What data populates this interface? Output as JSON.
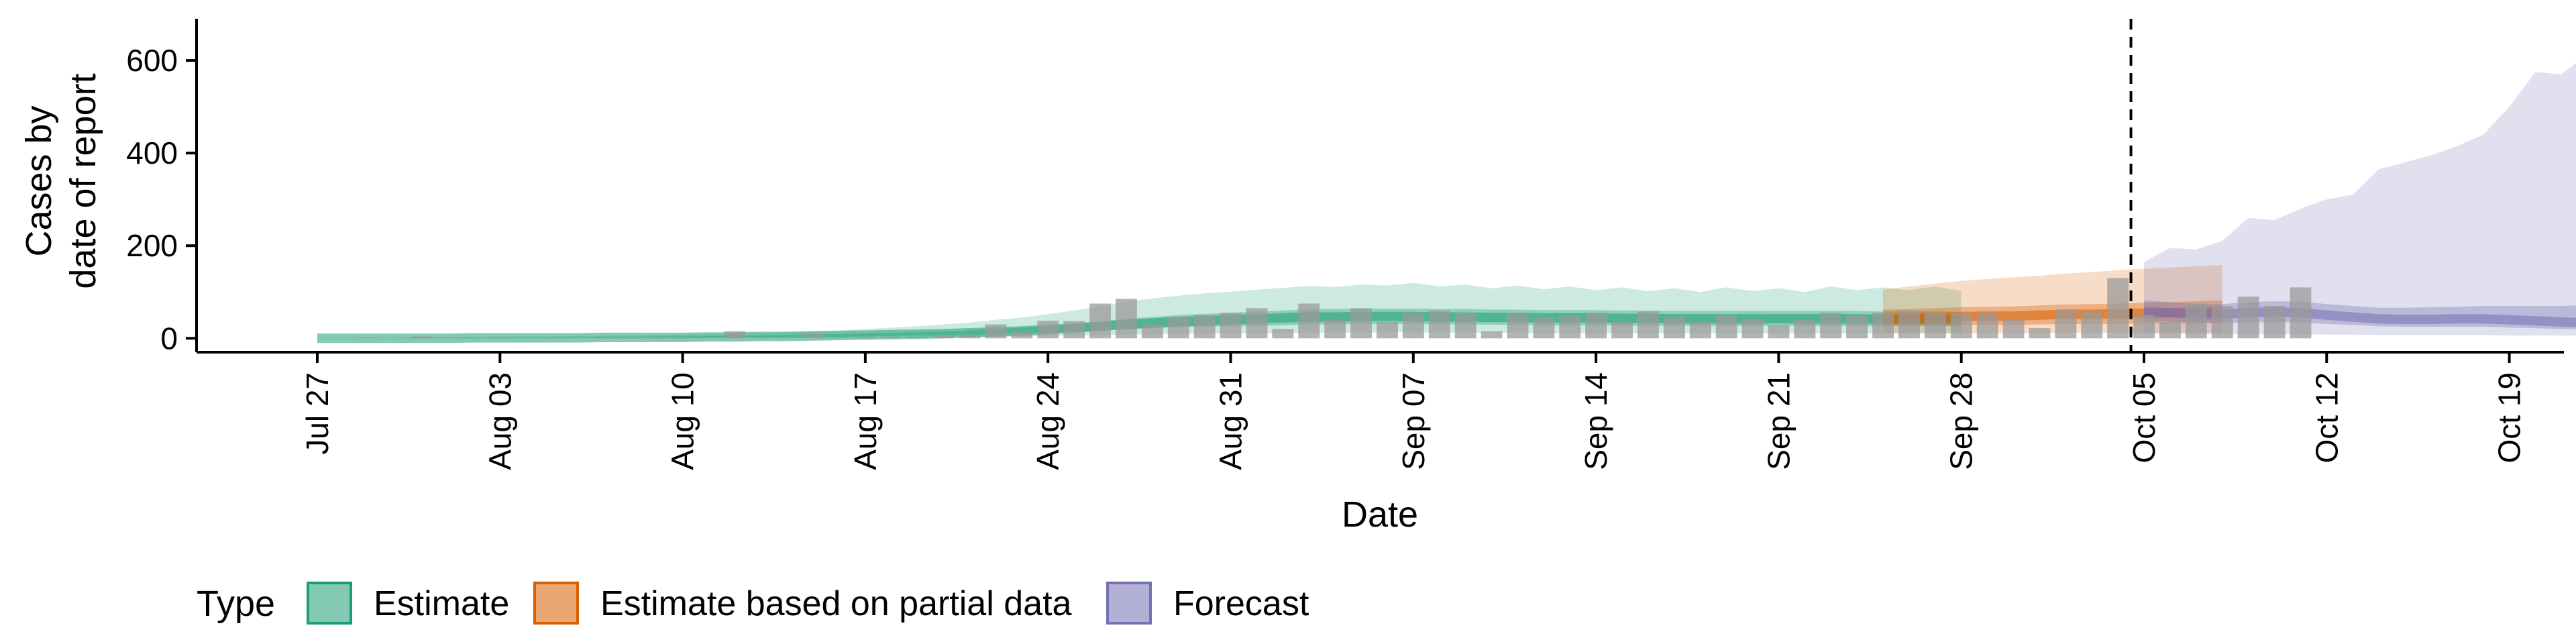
{
  "chart_data": {
    "type": "area",
    "title": "",
    "xlabel": "Date",
    "ylabel_lines": [
      "Cases by",
      "date of report"
    ],
    "x_start_date": "Jul 27",
    "x_end_date": "Oct 18",
    "xlim": [
      "Jul 22",
      "Oct 21"
    ],
    "ylim": [
      -30,
      690
    ],
    "grid": false,
    "legend_position": "bottom-left",
    "x_ticks": [
      "Jul 27",
      "Aug 03",
      "Aug 10",
      "Aug 17",
      "Aug 24",
      "Aug 31",
      "Sep 07",
      "Sep 14",
      "Sep 21",
      "Sep 28",
      "Oct 05",
      "Oct 12",
      "Oct 19"
    ],
    "y_ticks": [
      0,
      200,
      400,
      600
    ],
    "forecast_marker_date": "Oct 04",
    "legend": {
      "title": "Type",
      "items": [
        {
          "label": "Estimate",
          "color": "#1b9e77"
        },
        {
          "label": "Estimate based on partial data",
          "color": "#d95f02"
        },
        {
          "label": "Forecast",
          "color": "#7570b3"
        }
      ]
    },
    "colors": {
      "bar": "#9a9a9a",
      "marker_line": "#000000"
    },
    "reported_cases": [
      0,
      0,
      1,
      0,
      4,
      1,
      0,
      1,
      0,
      2,
      0,
      1,
      1,
      3,
      1,
      1,
      15,
      2,
      1,
      10,
      1,
      2,
      4,
      3,
      6,
      8,
      30,
      15,
      38,
      37,
      75,
      85,
      30,
      45,
      50,
      55,
      65,
      20,
      75,
      40,
      65,
      35,
      55,
      60,
      55,
      15,
      55,
      45,
      50,
      55,
      35,
      58,
      45,
      35,
      50,
      42,
      28,
      40,
      55,
      50,
      55,
      60,
      55,
      55,
      55,
      42,
      22,
      62,
      58,
      130,
      50,
      35,
      75,
      70,
      90,
      70,
      110,
      0,
      0,
      0,
      0,
      0,
      0,
      0,
      0,
      0,
      0,
      0,
      0,
      0,
      0
    ],
    "series": [
      {
        "name": "Estimate",
        "start": "Jul 27",
        "median": [
          0,
          0,
          0,
          0,
          0,
          0,
          1,
          1,
          1,
          1,
          1,
          2,
          2,
          2,
          2,
          3,
          3,
          4,
          4,
          5,
          6,
          7,
          8,
          9,
          10,
          12,
          14,
          16,
          19,
          22,
          26,
          30,
          33,
          36,
          38,
          40,
          42,
          44,
          46,
          46,
          47,
          47,
          47,
          46,
          46,
          45,
          45,
          44,
          44,
          44,
          43,
          43,
          42,
          42,
          42,
          42,
          42,
          42,
          42,
          42,
          41,
          41,
          41,
          40
        ],
        "q25_75": [
          [
            0,
            0
          ],
          [
            0,
            0
          ],
          [
            0,
            0
          ],
          [
            0,
            0
          ],
          [
            0,
            1
          ],
          [
            0,
            1
          ],
          [
            0,
            1
          ],
          [
            1,
            2
          ],
          [
            1,
            2
          ],
          [
            1,
            2
          ],
          [
            1,
            2
          ],
          [
            1,
            3
          ],
          [
            1,
            3
          ],
          [
            1,
            4
          ],
          [
            1,
            4
          ],
          [
            2,
            5
          ],
          [
            2,
            5
          ],
          [
            2,
            6
          ],
          [
            2,
            7
          ],
          [
            3,
            8
          ],
          [
            3,
            9
          ],
          [
            4,
            10
          ],
          [
            5,
            12
          ],
          [
            6,
            13
          ],
          [
            6,
            15
          ],
          [
            7,
            17
          ],
          [
            9,
            20
          ],
          [
            10,
            23
          ],
          [
            12,
            27
          ],
          [
            14,
            31
          ],
          [
            17,
            36
          ],
          [
            20,
            42
          ],
          [
            22,
            46
          ],
          [
            24,
            50
          ],
          [
            25,
            53
          ],
          [
            26,
            55
          ],
          [
            27,
            58
          ],
          [
            28,
            60
          ],
          [
            30,
            63
          ],
          [
            30,
            63
          ],
          [
            31,
            64
          ],
          [
            31,
            64
          ],
          [
            31,
            64
          ],
          [
            30,
            63
          ],
          [
            30,
            63
          ],
          [
            29,
            62
          ],
          [
            29,
            62
          ],
          [
            28,
            61
          ],
          [
            28,
            61
          ],
          [
            28,
            61
          ],
          [
            27,
            60
          ],
          [
            27,
            60
          ],
          [
            27,
            59
          ],
          [
            27,
            59
          ],
          [
            27,
            59
          ],
          [
            27,
            59
          ],
          [
            27,
            59
          ],
          [
            27,
            59
          ],
          [
            27,
            59
          ],
          [
            27,
            59
          ],
          [
            26,
            58
          ],
          [
            26,
            58
          ],
          [
            26,
            58
          ],
          [
            25,
            57
          ]
        ],
        "q5_95": [
          [
            0,
            0
          ],
          [
            0,
            1
          ],
          [
            0,
            1
          ],
          [
            0,
            1
          ],
          [
            0,
            2
          ],
          [
            0,
            2
          ],
          [
            0,
            3
          ],
          [
            0,
            3
          ],
          [
            0,
            4
          ],
          [
            0,
            4
          ],
          [
            0,
            5
          ],
          [
            0,
            5
          ],
          [
            0,
            6
          ],
          [
            0,
            7
          ],
          [
            0,
            8
          ],
          [
            0,
            9
          ],
          [
            0,
            10
          ],
          [
            1,
            12
          ],
          [
            1,
            13
          ],
          [
            1,
            15
          ],
          [
            1,
            17
          ],
          [
            1,
            20
          ],
          [
            2,
            23
          ],
          [
            2,
            26
          ],
          [
            2,
            30
          ],
          [
            3,
            34
          ],
          [
            3,
            40
          ],
          [
            4,
            45
          ],
          [
            5,
            52
          ],
          [
            6,
            60
          ],
          [
            7,
            69
          ],
          [
            8,
            79
          ],
          [
            9,
            86
          ],
          [
            10,
            92
          ],
          [
            10,
            97
          ],
          [
            11,
            101
          ],
          [
            11,
            105
          ],
          [
            12,
            109
          ],
          [
            12,
            113
          ],
          [
            12,
            111
          ],
          [
            12,
            116
          ],
          [
            13,
            114
          ],
          [
            13,
            120
          ],
          [
            12,
            112
          ],
          [
            12,
            116
          ],
          [
            12,
            108
          ],
          [
            12,
            114
          ],
          [
            11,
            106
          ],
          [
            11,
            112
          ],
          [
            11,
            104
          ],
          [
            11,
            110
          ],
          [
            11,
            102
          ],
          [
            11,
            108
          ],
          [
            11,
            100
          ],
          [
            11,
            110
          ],
          [
            11,
            102
          ],
          [
            11,
            108
          ],
          [
            11,
            100
          ],
          [
            11,
            112
          ],
          [
            11,
            104
          ],
          [
            11,
            110
          ],
          [
            11,
            104
          ],
          [
            11,
            112
          ],
          [
            10,
            102
          ]
        ]
      },
      {
        "name": "Estimate based on partial data",
        "start": "Sep 25",
        "median": [
          42,
          44,
          45,
          47,
          48,
          48,
          50,
          52,
          52,
          53,
          54,
          55,
          57,
          58
        ],
        "q25_75": [
          [
            27,
            62
          ],
          [
            28,
            63
          ],
          [
            28,
            65
          ],
          [
            29,
            67
          ],
          [
            29,
            68
          ],
          [
            29,
            69
          ],
          [
            30,
            71
          ],
          [
            31,
            73
          ],
          [
            31,
            74
          ],
          [
            31,
            75
          ],
          [
            32,
            77
          ],
          [
            32,
            78
          ],
          [
            33,
            80
          ],
          [
            33,
            82
          ]
        ],
        "q5_95": [
          [
            11,
            105
          ],
          [
            11,
            112
          ],
          [
            11,
            118
          ],
          [
            11,
            124
          ],
          [
            11,
            128
          ],
          [
            11,
            132
          ],
          [
            11,
            135
          ],
          [
            12,
            140
          ],
          [
            12,
            143
          ],
          [
            12,
            147
          ],
          [
            12,
            150
          ],
          [
            12,
            153
          ],
          [
            12,
            156
          ],
          [
            12,
            158
          ]
        ]
      },
      {
        "name": "Forecast",
        "start": "Oct 05",
        "median": [
          58,
          55,
          52,
          52,
          55,
          57,
          55,
          50,
          46,
          42,
          41,
          41,
          42,
          42,
          40,
          38,
          35,
          34,
          33
        ],
        "q25_75": [
          [
            38,
            82
          ],
          [
            36,
            78
          ],
          [
            34,
            74
          ],
          [
            33,
            74
          ],
          [
            34,
            78
          ],
          [
            35,
            80
          ],
          [
            34,
            79
          ],
          [
            31,
            74
          ],
          [
            29,
            70
          ],
          [
            26,
            66
          ],
          [
            25,
            66
          ],
          [
            25,
            67
          ],
          [
            25,
            68
          ],
          [
            25,
            70
          ],
          [
            23,
            70
          ],
          [
            22,
            70
          ],
          [
            20,
            70
          ],
          [
            19,
            72
          ],
          [
            18,
            74
          ]
        ],
        "q5_95": [
          [
            10,
            165
          ],
          [
            10,
            195
          ],
          [
            9,
            192
          ],
          [
            9,
            210
          ],
          [
            9,
            260
          ],
          [
            9,
            255
          ],
          [
            9,
            280
          ],
          [
            8,
            300
          ],
          [
            8,
            310
          ],
          [
            7,
            365
          ],
          [
            7,
            380
          ],
          [
            7,
            395
          ],
          [
            7,
            415
          ],
          [
            7,
            440
          ],
          [
            6,
            500
          ],
          [
            6,
            575
          ],
          [
            6,
            570
          ],
          [
            6,
            615
          ],
          [
            6,
            660
          ]
        ]
      }
    ]
  }
}
